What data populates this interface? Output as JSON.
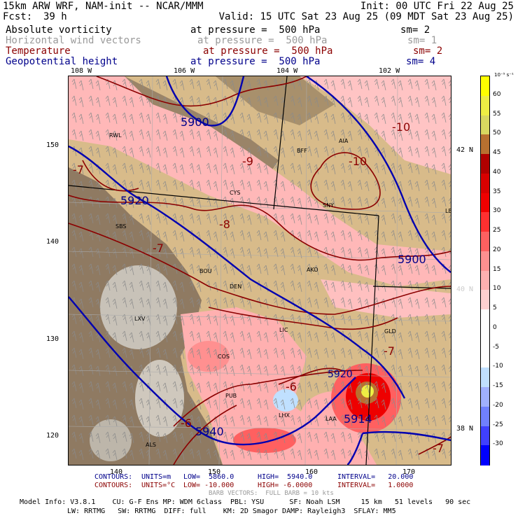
{
  "header": {
    "model": "15km ARW WRF, NAM-init -- NCAR/MMM",
    "init": "Init: 00 UTC Fri 22 Aug 25",
    "fcst_label": "Fcst:",
    "fcst_value": "39 h",
    "valid": "Valid: 15 UTC Sat 23 Aug 25 (09 MDT Sat 23 Aug 25)"
  },
  "fields": [
    {
      "name": "Absolute vorticity",
      "pressure": "at pressure =  500 hPa",
      "sm": "sm= 2",
      "color": "#000000"
    },
    {
      "name": "Horizontal wind vectors",
      "pressure": "at pressure =  500 hPa",
      "sm": "sm= 1",
      "color": "#9a9a9a"
    },
    {
      "name": "Temperature",
      "pressure": "at pressure =  500 hPa",
      "sm": "sm= 2",
      "color": "#8b0000"
    },
    {
      "name": "Geopotential height",
      "pressure": "at pressure =  500 hPa",
      "sm": "sm= 4",
      "color": "#00008b"
    }
  ],
  "lon_labels": [
    "108 W",
    "106 W",
    "104 W",
    "102 W"
  ],
  "lat_labels_right": [
    "42 N",
    "40 N",
    "38 N"
  ],
  "grid_y_labels": [
    "150",
    "140",
    "130",
    "120"
  ],
  "grid_x_labels": [
    "140",
    "150",
    "160",
    "170"
  ],
  "map": {
    "stations": [
      "RWL",
      "BFF",
      "AIA",
      "CYS",
      "SNY",
      "LBF",
      "SBS",
      "BOU",
      "DEN",
      "AKO",
      "LXV",
      "LIC",
      "GLD",
      "COS",
      "PUB",
      "LHX",
      "LAA",
      "ALS"
    ],
    "height_labels": [
      "5900",
      "5920",
      "5900",
      "5920",
      "5914",
      "5940"
    ],
    "temp_labels": [
      "-10",
      "-10",
      "-9",
      "-8",
      "-7",
      "-7",
      "-7",
      "-6",
      "-6",
      "-7"
    ]
  },
  "colorbar": {
    "unit": "10⁻⁵ s⁻¹",
    "labels": [
      "60",
      "55",
      "50",
      "45",
      "40",
      "35",
      "30",
      "25",
      "20",
      "15",
      "10",
      "5",
      "0",
      "-5",
      "-10",
      "-15",
      "-20",
      "-25",
      "-30"
    ],
    "colors": [
      "#ffff00",
      "#eeee44",
      "#d8d860",
      "#b87030",
      "#b00000",
      "#d80000",
      "#f00000",
      "#ff3030",
      "#ff6060",
      "#ff9090",
      "#ffb0b0",
      "#ffd0d0",
      "#ffffff",
      "#ffffff",
      "#ffffff",
      "#c0e0ff",
      "#a0b0ff",
      "#7080ff",
      "#4040ff",
      "#0000ff"
    ]
  },
  "contours_height": {
    "label": "CONTOURS:",
    "units": "UNITS=m",
    "low": "LOW=  5860.0",
    "high": "HIGH=  5940.0",
    "interval": "INTERVAL=   20.000",
    "color": "#00008b"
  },
  "contours_temp": {
    "label": "CONTOURS:",
    "units": "UNITS=°C",
    "low": "LOW= -10.000",
    "high": "HIGH= -6.0000",
    "interval": "INTERVAL=   1.0000",
    "color": "#8b0000"
  },
  "barb_note": "BARB VECTORS:  FULL BARB = 10 kts",
  "model_info_1": "Model Info: V3.8.1    CU: G-F Ens MP: WDM 6class  PBL: YSU      SF: Noah LSM     15 km   51 levels   90 sec",
  "model_info_2": "LW: RRTMG   SW: RRTMG  DIFF: full    KM: 2D Smagor DAMP: Rayleigh3  SFLAY: MM5"
}
